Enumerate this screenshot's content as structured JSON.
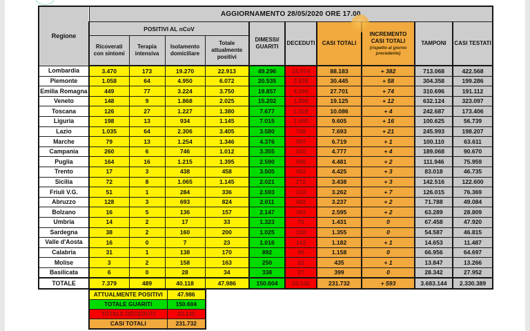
{
  "table": {
    "title": "AGGIORNAMENTO 28/05/2020 ORE 17.00",
    "corner_label": "Regione",
    "positivi_group_label": "POSITIVI AL nCoV",
    "sub_columns": [
      "Ricoverati\ncon sintomi",
      "Terapia\nintensiva",
      "Isolamento\ndomiciliare",
      "Totale\nattualmente\npositivi"
    ],
    "main_columns": [
      "DIMESSI/\nGUARITI",
      "DECEDUTI",
      "CASI TOTALI",
      "INCREMENTO\nCASI  TOTALI",
      "TAMPONI",
      "CASI TESTATI"
    ],
    "incremento_note": "(rispetto al giorno precedente)",
    "rows": [
      [
        "Lombardia",
        "3.470",
        "173",
        "19.270",
        "22.913",
        "49.296",
        "15.974",
        "88.183",
        "+ 382",
        "713.068",
        "422.568"
      ],
      [
        "Piemonte",
        "1.058",
        "64",
        "4.950",
        "6.072",
        "20.535",
        "3.838",
        "30.445",
        "+ 58",
        "304.358",
        "199.286"
      ],
      [
        "Emilia Romagna",
        "449",
        "77",
        "3.224",
        "3.750",
        "19.857",
        "4.094",
        "27.701",
        "+ 74",
        "310.696",
        "191.112"
      ],
      [
        "Veneto",
        "148",
        "9",
        "1.868",
        "2.025",
        "15.202",
        "1.898",
        "19.125",
        "+ 12",
        "632.124",
        "323.097"
      ],
      [
        "Toscana",
        "126",
        "27",
        "1.227",
        "1.380",
        "7.677",
        "1.029",
        "10.086",
        "+ 4",
        "242.687",
        "173.406"
      ],
      [
        "Liguria",
        "198",
        "13",
        "934",
        "1.145",
        "7.015",
        "1.445",
        "9.605",
        "+ 16",
        "100.625",
        "56.739"
      ],
      [
        "Lazio",
        "1.035",
        "64",
        "2.306",
        "3.405",
        "3.580",
        "708",
        "7.693",
        "+ 21",
        "245.993",
        "198.207"
      ],
      [
        "Marche",
        "79",
        "13",
        "1.254",
        "1.346",
        "4.376",
        "997",
        "6.719",
        "+ 1",
        "100.110",
        "63.611"
      ],
      [
        "Campania",
        "260",
        "6",
        "746",
        "1.012",
        "3.355",
        "410",
        "4.777",
        "+ 4",
        "189.068",
        "90.670"
      ],
      [
        "Puglia",
        "164",
        "16",
        "1.215",
        "1.395",
        "2.590",
        "496",
        "4.481",
        "+ 2",
        "111.946",
        "75.959"
      ],
      [
        "Trento",
        "17",
        "3",
        "438",
        "458",
        "3.505",
        "462",
        "4.425",
        "+ 3",
        "83.018",
        "46.735"
      ],
      [
        "Sicilia",
        "72",
        "8",
        "1.065",
        "1.145",
        "2.021",
        "272",
        "3.438",
        "+ 3",
        "142.516",
        "122.600"
      ],
      [
        "Friuli V.G.",
        "51",
        "1",
        "284",
        "336",
        "2.593",
        "333",
        "3.262",
        "+ 7",
        "126.015",
        "76.369"
      ],
      [
        "Abruzzo",
        "128",
        "3",
        "693",
        "824",
        "2.011",
        "402",
        "3.237",
        "+ 2",
        "71.788",
        "49.084"
      ],
      [
        "Bolzano",
        "16",
        "5",
        "136",
        "157",
        "2.147",
        "291",
        "2.595",
        "+ 2",
        "63.289",
        "28.809"
      ],
      [
        "Umbria",
        "14",
        "2",
        "17",
        "33",
        "1.323",
        "75",
        "1.431",
        "0",
        "67.458",
        "47.920"
      ],
      [
        "Sardegna",
        "38",
        "2",
        "160",
        "200",
        "1.025",
        "130",
        "1.355",
        "0",
        "54.587",
        "46.815"
      ],
      [
        "Valle d'Aosta",
        "16",
        "0",
        "7",
        "23",
        "1.016",
        "143",
        "1.182",
        "+ 1",
        "14.653",
        "11.487"
      ],
      [
        "Calabria",
        "31",
        "1",
        "138",
        "170",
        "892",
        "96",
        "1.158",
        "0",
        "66.956",
        "64.697"
      ],
      [
        "Molise",
        "3",
        "2",
        "158",
        "163",
        "250",
        "22",
        "435",
        "+ 1",
        "13.847",
        "13.266"
      ],
      [
        "Basilicata",
        "6",
        "0",
        "28",
        "34",
        "338",
        "27",
        "399",
        "0",
        "28.342",
        "27.952"
      ]
    ],
    "totale_row": [
      "TOTALE",
      "7.379",
      "489",
      "40.118",
      "47.986",
      "150.604",
      "33.142",
      "231.732",
      "+ 593",
      "3.683.144",
      "2.330.389"
    ]
  },
  "summary": {
    "items": [
      {
        "label": "ATTUALMENTE POSITIVI",
        "value": "47.986",
        "color": "yellow"
      },
      {
        "label": "TOTALE GUARITI",
        "value": "150.604",
        "color": "green"
      },
      {
        "label": "TOTALE DECEDUTI",
        "value": "33.142",
        "color": "red"
      },
      {
        "label": "CASI TOTALI",
        "value": "231.732",
        "color": "orange"
      }
    ]
  },
  "colors": {
    "yellow": "#FFF100",
    "green": "#00DB00",
    "red": "#F80000",
    "red_text": "#8A120B",
    "orange": "#F2A93D",
    "header_gray": "#CDCDCD",
    "data_gray": "#C8C8C8"
  }
}
